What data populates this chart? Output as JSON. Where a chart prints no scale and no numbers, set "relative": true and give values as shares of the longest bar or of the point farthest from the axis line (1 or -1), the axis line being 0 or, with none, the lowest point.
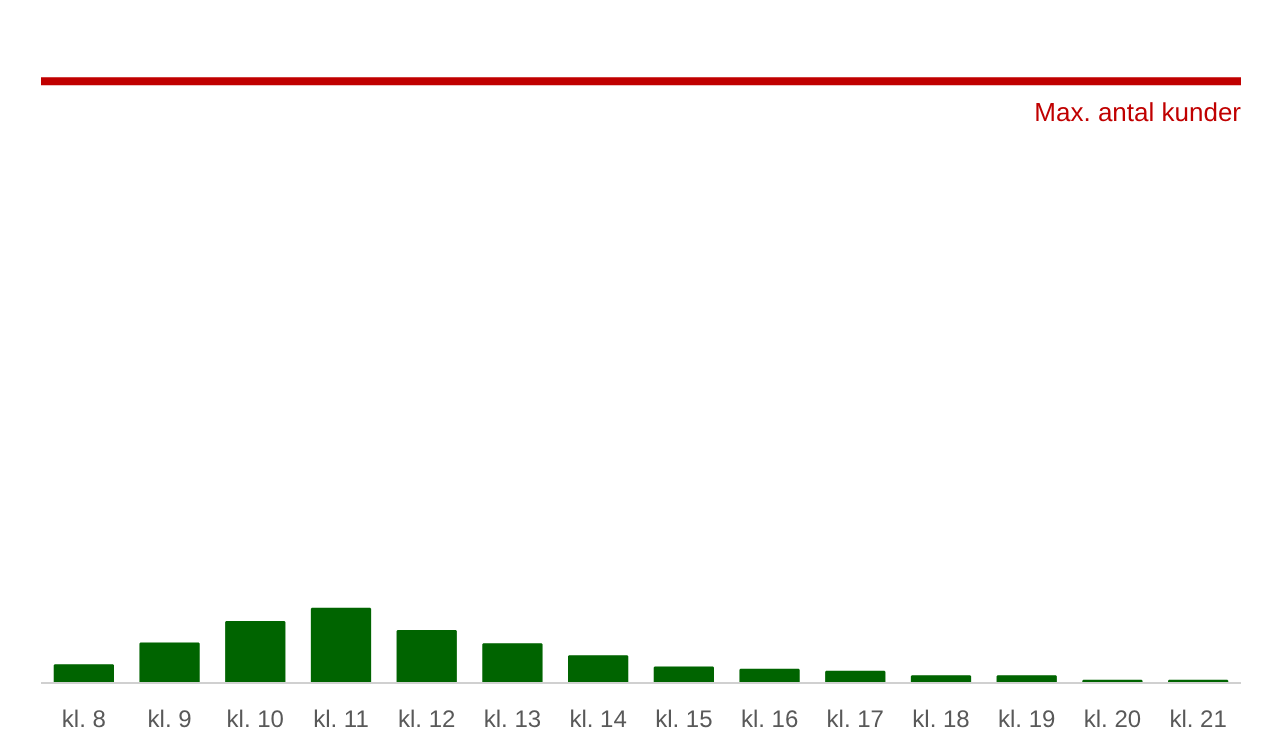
{
  "chart_data": {
    "type": "bar",
    "relative": true,
    "categories": [
      "kl. 8",
      "kl. 9",
      "kl. 10",
      "kl. 11",
      "kl. 12",
      "kl. 13",
      "kl. 14",
      "kl. 15",
      "kl. 16",
      "kl. 17",
      "kl. 18",
      "kl. 19",
      "kl. 20",
      "kl. 21"
    ],
    "values": [
      0.24,
      0.53,
      0.82,
      1,
      0.7,
      0.52,
      0.36,
      0.21,
      0.18,
      0.15,
      0.09,
      0.09,
      0.03,
      0.03
    ],
    "color": "#006400",
    "ref_lines": [
      {
        "axis": "y",
        "value": 8.1,
        "label": "Max. antal kunder",
        "color": "#c00000"
      }
    ],
    "grid": false
  }
}
